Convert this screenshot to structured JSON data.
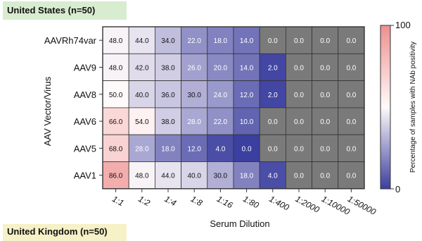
{
  "panel": {
    "title": "United States (n=50)",
    "next_title": "United Kingdom (n=50)"
  },
  "colors": {
    "low": "#3b3f9f",
    "mid": "#fffafa",
    "high": "#ef8f8f",
    "na": "#7a7a7a",
    "border": "#333333"
  },
  "chart_data": {
    "type": "heatmap",
    "title": "United States (n=50)",
    "xlabel": "Serum Dilution",
    "ylabel": "AAV Vector/Virus",
    "x": [
      "1:1",
      "1:2",
      "1:4",
      "1:8",
      "1:16",
      "1:80",
      "1:400",
      "1:2000",
      "1:10000",
      "1:50000"
    ],
    "y": [
      "AAVRh74var",
      "AAV9",
      "AAV8",
      "AAV6",
      "AAV5",
      "AAV1"
    ],
    "values": [
      [
        48.0,
        44.0,
        34.0,
        22.0,
        18.0,
        14.0,
        0.0,
        0.0,
        0.0,
        0.0
      ],
      [
        48.0,
        42.0,
        38.0,
        26.0,
        20.0,
        14.0,
        2.0,
        0.0,
        0.0,
        0.0
      ],
      [
        50.0,
        40.0,
        36.0,
        30.0,
        24.0,
        12.0,
        2.0,
        0.0,
        0.0,
        0.0
      ],
      [
        66.0,
        54.0,
        38.0,
        28.0,
        22.0,
        10.0,
        0.0,
        0.0,
        0.0,
        0.0
      ],
      [
        68.0,
        28.0,
        18.0,
        12.0,
        4.0,
        0.0,
        0.0,
        0.0,
        0.0,
        0.0
      ],
      [
        86.0,
        48.0,
        44.0,
        40.0,
        30.0,
        18.0,
        4.0,
        0.0,
        0.0,
        0.0
      ]
    ],
    "gray_cells": [
      [
        6,
        7,
        8,
        9
      ],
      [
        7,
        8,
        9
      ],
      [
        7,
        8,
        9
      ],
      [
        6,
        7,
        8,
        9
      ],
      [
        6,
        7,
        8,
        9
      ],
      [
        7,
        8,
        9
      ]
    ],
    "colorbar": {
      "label": "Percentage of samples with NAb positivity",
      "min": 0,
      "max": 100,
      "ticks": [
        "0",
        "100"
      ],
      "midpoint": 50
    },
    "value_format": "one-decimal"
  }
}
